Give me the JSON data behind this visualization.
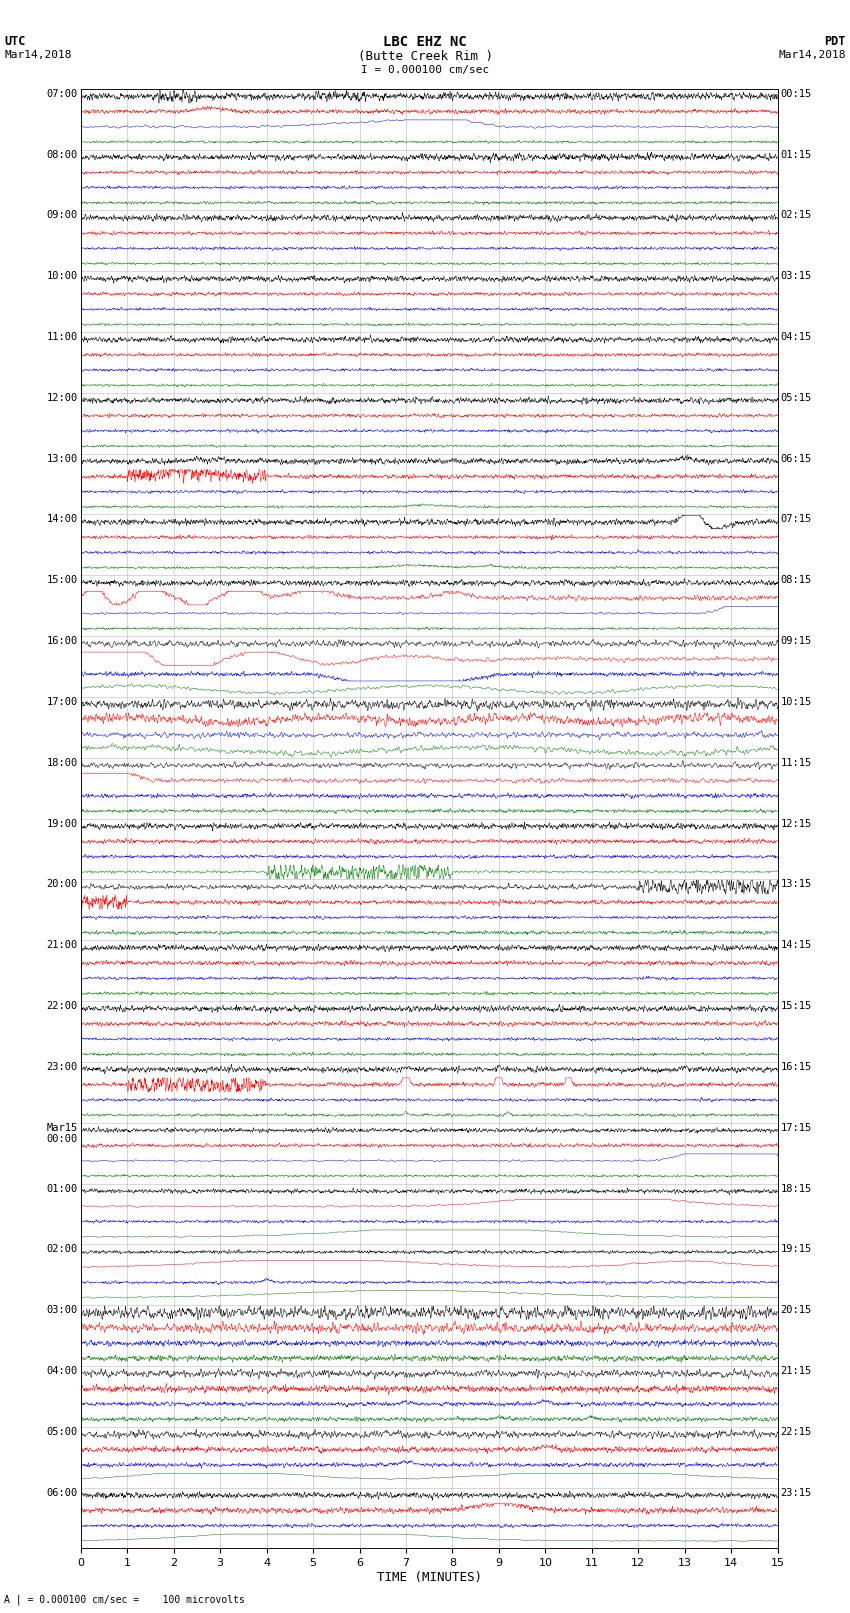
{
  "title_line1": "LBC EHZ NC",
  "title_line2": "(Butte Creek Rim )",
  "scale_label": "I = 0.000100 cm/sec",
  "footer_label": "A | = 0.000100 cm/sec =    100 microvolts",
  "utc_label": "UTC",
  "utc_date": "Mar14,2018",
  "pdt_label": "PDT",
  "pdt_date": "Mar14,2018",
  "xlabel": "TIME (MINUTES)",
  "left_times_utc": [
    "07:00",
    "08:00",
    "09:00",
    "10:00",
    "11:00",
    "12:00",
    "13:00",
    "14:00",
    "15:00",
    "16:00",
    "17:00",
    "18:00",
    "19:00",
    "20:00",
    "21:00",
    "22:00",
    "23:00",
    "Mar15\n00:00",
    "01:00",
    "02:00",
    "03:00",
    "04:00",
    "05:00",
    "06:00"
  ],
  "right_times_pdt": [
    "00:15",
    "01:15",
    "02:15",
    "03:15",
    "04:15",
    "05:15",
    "06:15",
    "07:15",
    "08:15",
    "09:15",
    "10:15",
    "11:15",
    "12:15",
    "13:15",
    "14:15",
    "15:15",
    "16:15",
    "17:15",
    "18:15",
    "19:15",
    "20:15",
    "21:15",
    "22:15",
    "23:15"
  ],
  "n_rows": 24,
  "n_traces_per_row": 4,
  "trace_colors": [
    "black",
    "red",
    "blue",
    "green"
  ],
  "bg_color": "white",
  "grid_color": "#888888",
  "x_min": 0,
  "x_max": 15,
  "x_ticks": [
    0,
    1,
    2,
    3,
    4,
    5,
    6,
    7,
    8,
    9,
    10,
    11,
    12,
    13,
    14,
    15
  ]
}
